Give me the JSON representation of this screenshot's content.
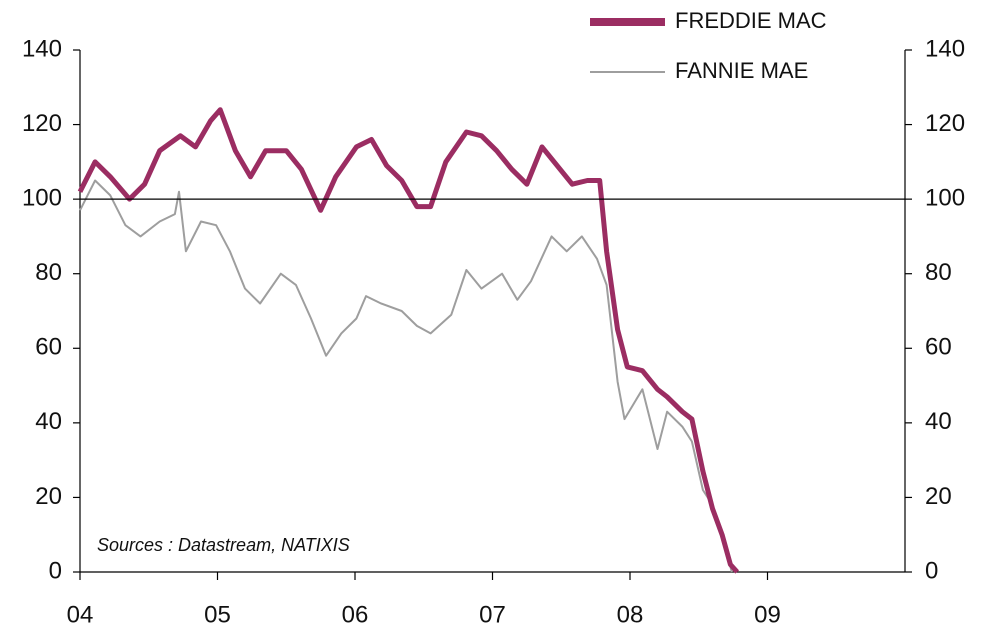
{
  "chart_data": {
    "type": "line",
    "note": "Sources : Datastream, NATIXIS",
    "legend": "top-right",
    "reference_line": 100,
    "series": [
      {
        "name": "FREDDIE MAC",
        "color": "#9b2d62",
        "x": [
          2004.0,
          2004.11,
          2004.22,
          2004.36,
          2004.47,
          2004.58,
          2004.73,
          2004.84,
          2004.95,
          2005.02,
          2005.13,
          2005.24,
          2005.35,
          2005.5,
          2005.61,
          2005.75,
          2005.86,
          2006.01,
          2006.12,
          2006.23,
          2006.34,
          2006.45,
          2006.55,
          2006.66,
          2006.81,
          2006.92,
          2007.03,
          2007.14,
          2007.25,
          2007.36,
          2007.47,
          2007.58,
          2007.69,
          2007.78,
          2007.83,
          2007.91,
          2007.98,
          2008.09,
          2008.2,
          2008.27,
          2008.38,
          2008.45,
          2008.53,
          2008.6,
          2008.67,
          2008.73,
          2008.78
        ],
        "values": [
          102,
          110,
          106,
          100,
          104,
          113,
          117,
          114,
          121,
          124,
          113,
          106,
          113,
          113,
          108,
          97,
          106,
          114,
          116,
          109,
          105,
          98,
          98,
          110,
          118,
          117,
          113,
          108,
          104,
          114,
          109,
          104,
          105,
          105,
          86,
          65,
          55,
          54,
          49,
          47,
          43,
          41,
          27,
          17,
          10,
          2,
          0
        ]
      },
      {
        "name": "FANNIE MAE",
        "color": "#9e9e9e",
        "x": [
          2004.0,
          2004.11,
          2004.22,
          2004.33,
          2004.44,
          2004.58,
          2004.69,
          2004.72,
          2004.77,
          2004.88,
          2004.99,
          2005.09,
          2005.2,
          2005.31,
          2005.46,
          2005.57,
          2005.68,
          2005.79,
          2005.9,
          2006.01,
          2006.08,
          2006.19,
          2006.34,
          2006.45,
          2006.55,
          2006.7,
          2006.81,
          2006.92,
          2007.07,
          2007.18,
          2007.28,
          2007.43,
          2007.54,
          2007.65,
          2007.76,
          2007.83,
          2007.91,
          2007.96,
          2008.09,
          2008.2,
          2008.27,
          2008.38,
          2008.45,
          2008.53,
          2008.6,
          2008.69,
          2008.74
        ],
        "values": [
          97,
          105,
          101,
          93,
          90,
          94,
          96,
          102,
          86,
          94,
          93,
          86,
          76,
          72,
          80,
          77,
          68,
          58,
          64,
          68,
          74,
          72,
          70,
          66,
          64,
          69,
          81,
          76,
          80,
          73,
          78,
          90,
          86,
          90,
          84,
          77,
          51,
          41,
          49,
          33,
          43,
          39,
          35,
          22,
          18,
          7,
          0
        ]
      }
    ],
    "xlim": [
      2004,
      2010
    ],
    "xticks": [
      {
        "value": 2004,
        "label": "04"
      },
      {
        "value": 2005,
        "label": "05"
      },
      {
        "value": 2006,
        "label": "06"
      },
      {
        "value": 2007,
        "label": "07"
      },
      {
        "value": 2008,
        "label": "08"
      },
      {
        "value": 2009,
        "label": "09"
      }
    ],
    "ylim": [
      0,
      140
    ],
    "yticks": [
      0,
      20,
      40,
      60,
      80,
      100,
      120,
      140
    ],
    "y2lim": [
      0,
      140
    ],
    "y2ticks": [
      0,
      20,
      40,
      60,
      80,
      100,
      120,
      140
    ]
  }
}
